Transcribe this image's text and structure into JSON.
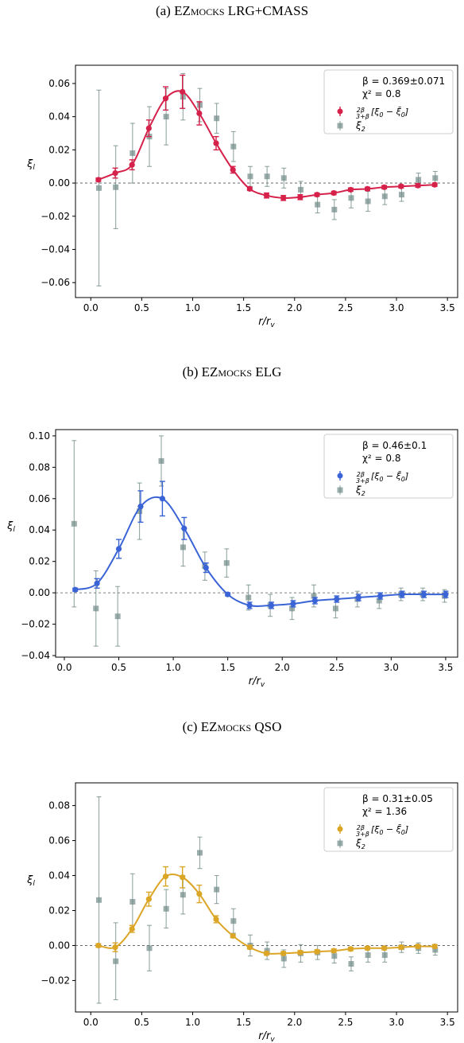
{
  "chart_data": [
    {
      "type": "scatter",
      "caption": "(a) EZmocks LRG+CMASS",
      "xlabel": "r/r_v",
      "ylabel": "ξ_l",
      "xlim": [
        -0.15,
        3.6
      ],
      "ylim": [
        -0.069,
        0.071
      ],
      "xticks": [
        0.0,
        0.5,
        1.0,
        1.5,
        2.0,
        2.5,
        3.0,
        3.5
      ],
      "yticks": [
        -0.06,
        -0.04,
        -0.02,
        0.0,
        0.02,
        0.04,
        0.06
      ],
      "ytick_labels": [
        "−0.06",
        "−0.04",
        "−0.02",
        "0.00",
        "0.02",
        "0.04",
        "0.06"
      ],
      "annotation": [
        "β = 0.369±0.071",
        "χ² = 0.8"
      ],
      "legend": [
        "2β/(3+β)[ξ0 − ξ̄0]",
        "ξ2"
      ],
      "legend_position": "top-right",
      "reference_line": 0.0,
      "series": [
        {
          "name": "2β/(3+β)[ξ0 − ξ̄0]",
          "color": "#d6214a",
          "x": [
            0.075,
            0.24,
            0.405,
            0.57,
            0.735,
            0.9,
            1.065,
            1.23,
            1.395,
            1.56,
            1.725,
            1.89,
            2.055,
            2.22,
            2.385,
            2.55,
            2.715,
            2.88,
            3.045,
            3.21,
            3.375
          ],
          "y": [
            0.002,
            0.006,
            0.011,
            0.033,
            0.051,
            0.055,
            0.042,
            0.024,
            0.008,
            -0.0035,
            -0.0075,
            -0.009,
            -0.0085,
            -0.007,
            -0.006,
            -0.004,
            -0.0035,
            -0.0025,
            -0.002,
            -0.0015,
            -0.001
          ],
          "yerr": [
            0.001,
            0.003,
            0.003,
            0.005,
            0.007,
            0.01,
            0.007,
            0.004,
            0.002,
            0.001,
            0.0015,
            0.0015,
            0.0015,
            0.001,
            0.001,
            0.001,
            0.001,
            0.001,
            0.001,
            0.001,
            0.001
          ]
        },
        {
          "name": "ξ2",
          "color": "#6f8a86",
          "x": [
            0.08,
            0.245,
            0.41,
            0.575,
            0.74,
            0.905,
            1.07,
            1.235,
            1.4,
            1.565,
            1.73,
            1.895,
            2.06,
            2.225,
            2.39,
            2.555,
            2.72,
            2.885,
            3.05,
            3.215,
            3.38
          ],
          "y": [
            -0.003,
            -0.0025,
            0.018,
            0.028,
            0.04,
            0.052,
            0.047,
            0.039,
            0.022,
            0.004,
            0.004,
            0.003,
            -0.004,
            -0.013,
            -0.016,
            -0.009,
            -0.011,
            -0.008,
            -0.007,
            0.002,
            0.003
          ],
          "yerr": [
            0.059,
            0.025,
            0.018,
            0.018,
            0.017,
            0.014,
            0.01,
            0.009,
            0.009,
            0.006,
            0.006,
            0.006,
            0.005,
            0.005,
            0.006,
            0.006,
            0.006,
            0.005,
            0.004,
            0.004,
            0.004
          ]
        }
      ]
    },
    {
      "type": "scatter",
      "caption": "(b) EZmocks ELG",
      "xlabel": "r/r_v",
      "ylabel": "ξ_l",
      "xlim": [
        -0.08,
        3.61
      ],
      "ylim": [
        -0.041,
        0.104
      ],
      "xticks": [
        0.0,
        0.5,
        1.0,
        1.5,
        2.0,
        2.5,
        3.0,
        3.5
      ],
      "yticks": [
        -0.04,
        -0.02,
        0.0,
        0.02,
        0.04,
        0.06,
        0.08,
        0.1
      ],
      "ytick_labels": [
        "−0.04",
        "−0.02",
        "0.00",
        "0.02",
        "0.04",
        "0.06",
        "0.08",
        "0.10"
      ],
      "annotation": [
        "β = 0.46±0.1",
        "χ² = 0.8"
      ],
      "legend": [
        "2β/(3+β)[ξ0 − ξ̄0]",
        "ξ2"
      ],
      "legend_position": "top-right",
      "reference_line": 0.0,
      "series": [
        {
          "name": "2β/(3+β)[ξ0 − ξ̄0]",
          "color": "#3a63d6",
          "x": [
            0.1,
            0.3,
            0.5,
            0.7,
            0.9,
            1.1,
            1.3,
            1.5,
            1.7,
            1.9,
            2.1,
            2.3,
            2.5,
            2.7,
            2.9,
            3.1,
            3.3,
            3.5
          ],
          "y": [
            0.002,
            0.006,
            0.028,
            0.055,
            0.06,
            0.041,
            0.016,
            -0.001,
            -0.008,
            -0.008,
            -0.007,
            -0.005,
            -0.004,
            -0.003,
            -0.002,
            -0.001,
            -0.001,
            -0.001
          ],
          "yerr": [
            0.001,
            0.003,
            0.006,
            0.01,
            0.011,
            0.007,
            0.003,
            0.001,
            0.002,
            0.002,
            0.002,
            0.002,
            0.002,
            0.002,
            0.002,
            0.002,
            0.002,
            0.002
          ]
        },
        {
          "name": "ξ2",
          "color": "#6f8a86",
          "x": [
            0.09,
            0.29,
            0.49,
            0.69,
            0.89,
            1.09,
            1.29,
            1.49,
            1.69,
            1.89,
            2.09,
            2.29,
            2.49,
            2.69,
            2.89,
            3.09,
            3.29,
            3.49
          ],
          "y": [
            0.044,
            -0.01,
            -0.015,
            0.052,
            0.084,
            0.029,
            0.017,
            0.019,
            -0.003,
            -0.008,
            -0.01,
            -0.002,
            -0.01,
            -0.004,
            -0.005,
            -0.001,
            -0.001,
            -0.002
          ],
          "yerr": [
            0.053,
            0.024,
            0.019,
            0.018,
            0.016,
            0.012,
            0.009,
            0.009,
            0.008,
            0.007,
            0.007,
            0.007,
            0.006,
            0.005,
            0.005,
            0.004,
            0.004,
            0.004
          ]
        }
      ]
    },
    {
      "type": "scatter",
      "caption": "(c) EZmocks QSO",
      "xlabel": "r/r_v",
      "ylabel": "ξ_l",
      "xlim": [
        -0.15,
        3.6
      ],
      "ylim": [
        -0.038,
        0.093
      ],
      "xticks": [
        0.0,
        0.5,
        1.0,
        1.5,
        2.0,
        2.5,
        3.0,
        3.5
      ],
      "yticks": [
        -0.02,
        0.0,
        0.02,
        0.04,
        0.06,
        0.08
      ],
      "ytick_labels": [
        "−0.02",
        "0.00",
        "0.02",
        "0.04",
        "0.06",
        "0.08"
      ],
      "annotation": [
        "β = 0.31±0.05",
        "χ² = 1.36"
      ],
      "legend": [
        "2β/(3+β)[ξ0 − ξ̄0]",
        "ξ2"
      ],
      "legend_position": "top-right",
      "reference_line": 0.0,
      "series": [
        {
          "name": "2β/(3+β)[ξ0 − ξ̄0]",
          "color": "#dba526",
          "x": [
            0.075,
            0.24,
            0.405,
            0.57,
            0.735,
            0.9,
            1.065,
            1.23,
            1.395,
            1.56,
            1.725,
            1.89,
            2.055,
            2.22,
            2.385,
            2.55,
            2.715,
            2.88,
            3.045,
            3.21,
            3.375
          ],
          "y": [
            0.0,
            -0.001,
            0.0095,
            0.0265,
            0.0395,
            0.039,
            0.0295,
            0.015,
            0.0055,
            -0.001,
            -0.0045,
            -0.0045,
            -0.004,
            -0.0035,
            -0.003,
            -0.002,
            -0.0015,
            -0.0015,
            -0.001,
            -0.0005,
            -0.0005
          ],
          "yerr": [
            0.001,
            0.0025,
            0.002,
            0.004,
            0.0055,
            0.006,
            0.005,
            0.002,
            0.001,
            0.001,
            0.001,
            0.001,
            0.001,
            0.001,
            0.001,
            0.001,
            0.001,
            0.001,
            0.001,
            0.001,
            0.001
          ]
        },
        {
          "name": "ξ2",
          "color": "#6f8a86",
          "x": [
            0.08,
            0.245,
            0.41,
            0.575,
            0.74,
            0.905,
            1.07,
            1.235,
            1.4,
            1.565,
            1.73,
            1.895,
            2.06,
            2.225,
            2.39,
            2.555,
            2.72,
            2.885,
            3.05,
            3.215,
            3.38
          ],
          "y": [
            0.026,
            -0.009,
            0.025,
            -0.0015,
            0.021,
            0.029,
            0.053,
            0.032,
            0.014,
            0.0,
            -0.003,
            -0.0075,
            -0.0045,
            -0.004,
            -0.006,
            -0.0105,
            -0.0055,
            -0.0055,
            -0.001,
            -0.0015,
            -0.0025
          ],
          "yerr": [
            0.059,
            0.022,
            0.016,
            0.013,
            0.011,
            0.011,
            0.009,
            0.008,
            0.007,
            0.006,
            0.005,
            0.005,
            0.005,
            0.004,
            0.004,
            0.004,
            0.004,
            0.004,
            0.003,
            0.003,
            0.003
          ]
        }
      ]
    }
  ]
}
